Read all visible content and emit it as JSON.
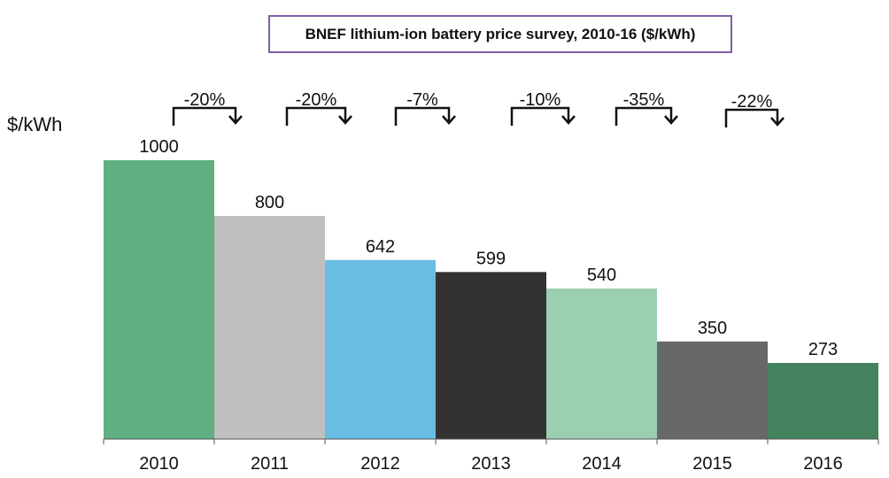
{
  "chart_data": {
    "type": "bar",
    "title": "BNEF lithium-ion battery price survey, 2010-16 ($/kWh)",
    "ylabel": "$/kWh",
    "xlabel": "",
    "categories": [
      "2010",
      "2011",
      "2012",
      "2013",
      "2014",
      "2015",
      "2016"
    ],
    "values": [
      1000,
      800,
      642,
      599,
      540,
      350,
      273
    ],
    "value_labels": [
      "1000",
      "800",
      "642",
      "599",
      "540",
      "350",
      "273"
    ],
    "ylim": [
      0,
      1000
    ],
    "grid": false,
    "legend": "none",
    "bar_colors": [
      "#5faf82",
      "#c0bebf",
      "#69bde3",
      "#333132",
      "#9bcfb0",
      "#676869",
      "#44825d"
    ],
    "annotations": [
      {
        "from": "2010",
        "to": "2011",
        "label": "-20%"
      },
      {
        "from": "2011",
        "to": "2012",
        "label": "-20%"
      },
      {
        "from": "2012",
        "to": "2013",
        "label": "-7%"
      },
      {
        "from": "2013",
        "to": "2014",
        "label": "-10%"
      },
      {
        "from": "2014",
        "to": "2015",
        "label": "-35%"
      },
      {
        "from": "2015",
        "to": "2016",
        "label": "-22%"
      }
    ],
    "title_border_color": "#7e5ea8"
  }
}
